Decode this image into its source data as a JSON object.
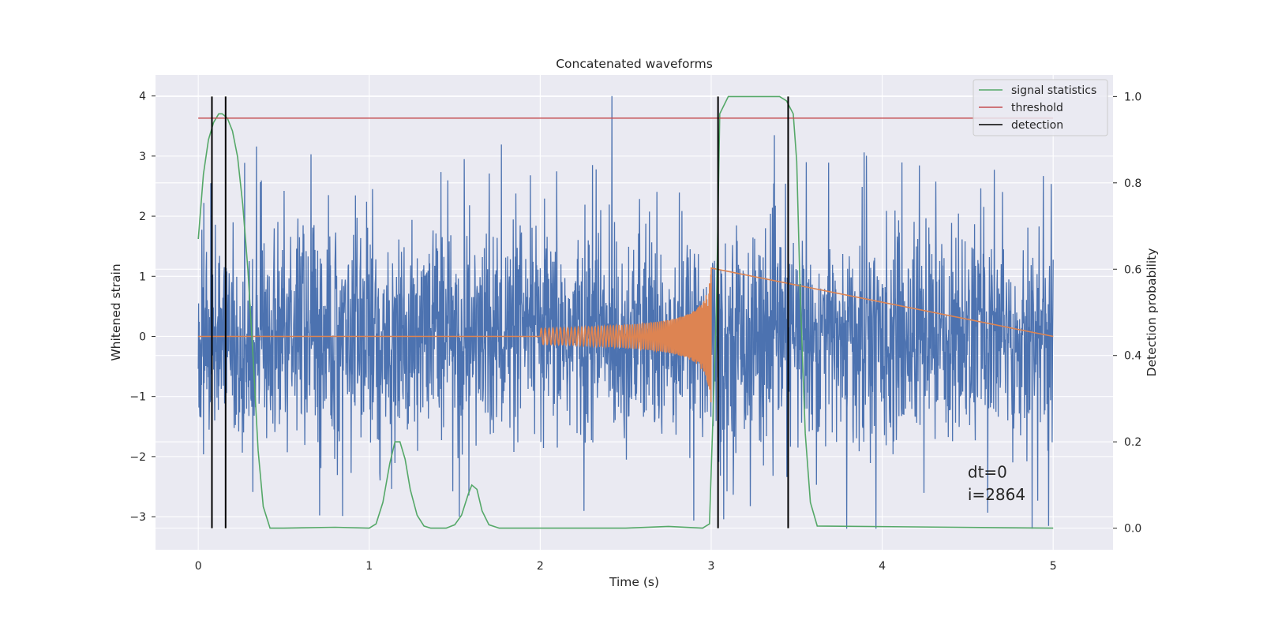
{
  "chart_data": {
    "type": "line",
    "title": "Concatenated waveforms",
    "xlabel": "Time (s)",
    "ylabel": "Whitened strain",
    "y2label": "Detection probability",
    "xlim": [
      -0.25,
      5.35
    ],
    "ylim": [
      -3.55,
      4.35
    ],
    "y2lim": [
      -0.05,
      1.05
    ],
    "xticks": [
      0,
      1,
      2,
      3,
      4,
      5
    ],
    "xtick_labels": [
      "0",
      "1",
      "2",
      "3",
      "4",
      "5"
    ],
    "yticks": [
      -3,
      -2,
      -1,
      0,
      1,
      2,
      3,
      4
    ],
    "ytick_labels": [
      "−3",
      "−2",
      "−1",
      "0",
      "1",
      "2",
      "3",
      "4"
    ],
    "y2ticks": [
      0.0,
      0.2,
      0.4,
      0.6,
      0.8,
      1.0
    ],
    "y2tick_labels": [
      "0.0",
      "0.2",
      "0.4",
      "0.6",
      "0.8",
      "1.0"
    ],
    "grid": true,
    "legend_position": "top-right",
    "noise": {
      "x_range": [
        0,
        5
      ],
      "typical_abs": 1.4,
      "peak_max": 4.0,
      "peak_min": -3.2,
      "color": "#4c72b0"
    },
    "chirp": {
      "x_range": [
        2.0,
        3.0
      ],
      "end_amplitude": 1.15,
      "color": "#dd8452",
      "baseline": 0
    },
    "series": [
      {
        "name": "signal statistics",
        "axis": "right",
        "color": "#55a868",
        "x": [
          0,
          0.03,
          0.06,
          0.09,
          0.12,
          0.14,
          0.17,
          0.2,
          0.23,
          0.26,
          0.29,
          0.32,
          0.35,
          0.38,
          0.42,
          0.5,
          0.8,
          1.0,
          1.04,
          1.08,
          1.12,
          1.15,
          1.18,
          1.21,
          1.24,
          1.28,
          1.32,
          1.36,
          1.45,
          1.5,
          1.54,
          1.58,
          1.6,
          1.63,
          1.66,
          1.7,
          1.76,
          2.0,
          2.5,
          2.75,
          2.95,
          2.99,
          3.03,
          3.05,
          3.1,
          3.2,
          3.4,
          3.44,
          3.48,
          3.5,
          3.52,
          3.55,
          3.58,
          3.62,
          5.0
        ],
        "values": [
          0.67,
          0.82,
          0.9,
          0.94,
          0.96,
          0.96,
          0.95,
          0.92,
          0.86,
          0.75,
          0.6,
          0.4,
          0.18,
          0.05,
          0.0,
          0.0,
          0.002,
          0.0,
          0.01,
          0.06,
          0.15,
          0.2,
          0.2,
          0.16,
          0.09,
          0.03,
          0.005,
          0.0,
          0.0,
          0.008,
          0.03,
          0.08,
          0.1,
          0.09,
          0.04,
          0.008,
          0.0,
          0.0,
          0.0,
          0.004,
          0.0,
          0.01,
          0.5,
          0.96,
          1.0,
          1.0,
          1.0,
          0.99,
          0.96,
          0.85,
          0.55,
          0.22,
          0.06,
          0.005,
          0.0
        ]
      },
      {
        "name": "threshold",
        "axis": "right",
        "color": "#c44e52",
        "x": [
          0,
          5
        ],
        "values": [
          0.95,
          0.95
        ]
      },
      {
        "name": "detection",
        "axis": "right",
        "color": "#000000",
        "x": [
          0.08,
          0.16,
          3.04,
          3.45
        ],
        "y_range": [
          0.0,
          1.0
        ]
      }
    ],
    "annotations": [
      "dt=0",
      "i=2864"
    ]
  }
}
